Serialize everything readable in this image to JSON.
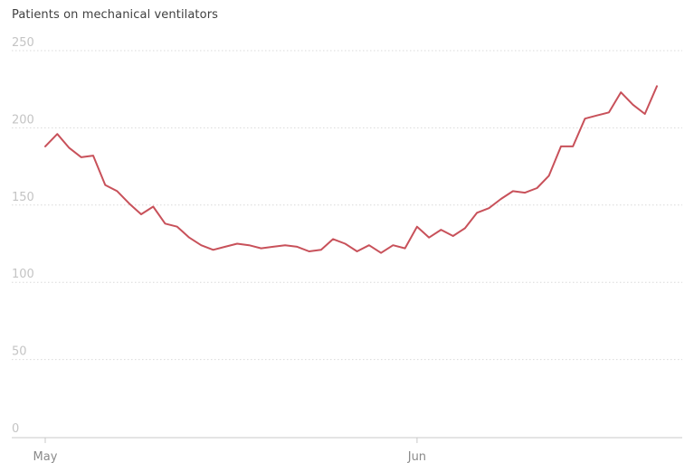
{
  "chart_data": {
    "type": "line",
    "title": "Patients on mechanical ventilators",
    "xlabel": "",
    "ylabel": "",
    "ylim": [
      0,
      250
    ],
    "yticks": [
      0,
      50,
      100,
      150,
      200,
      250
    ],
    "grid": true,
    "x_tick_labels": [
      {
        "label": "May",
        "day": 0
      },
      {
        "label": "Jun",
        "day": 31
      }
    ],
    "series": [
      {
        "color": "#c8515a",
        "x": [
          0,
          1,
          2,
          3,
          4,
          5,
          6,
          7,
          8,
          9,
          10,
          11,
          12,
          13,
          14,
          15,
          16,
          17,
          18,
          19,
          20,
          21,
          22,
          23,
          24,
          25,
          26,
          27,
          28,
          29,
          30,
          31,
          32,
          33,
          34,
          35,
          36,
          37,
          38,
          39,
          40,
          41,
          42,
          43,
          44,
          45,
          46,
          47,
          48,
          49,
          50,
          51
        ],
        "values": [
          188,
          196,
          187,
          181,
          182,
          163,
          159,
          151,
          144,
          149,
          138,
          136,
          129,
          124,
          121,
          123,
          125,
          124,
          122,
          123,
          124,
          123,
          120,
          121,
          128,
          125,
          120,
          124,
          119,
          124,
          122,
          136,
          129,
          134,
          130,
          135,
          145,
          148,
          154,
          159,
          158,
          161,
          169,
          188,
          188,
          206,
          208,
          210,
          223,
          215,
          209,
          227
        ]
      }
    ]
  }
}
